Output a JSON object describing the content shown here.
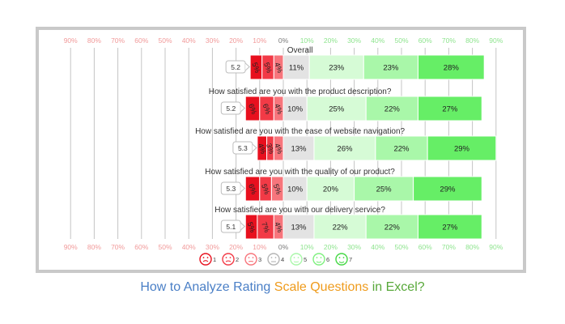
{
  "chart_data": {
    "type": "bar",
    "subtype": "diverging-stacked",
    "axis": {
      "ticks": [
        -90,
        -80,
        -70,
        -60,
        -50,
        -40,
        -30,
        -20,
        -10,
        0,
        10,
        20,
        30,
        40,
        50,
        60,
        70,
        80,
        90
      ],
      "tick_labels": [
        "90%",
        "80%",
        "70%",
        "60%",
        "50%",
        "40%",
        "30%",
        "20%",
        "10%",
        "0%",
        "10%",
        "20%",
        "30%",
        "40%",
        "50%",
        "60%",
        "70%",
        "80%",
        "90%"
      ],
      "range": [
        -90,
        90
      ],
      "grid": true
    },
    "categories": [
      "Overall",
      "How satisfied are you with the product description?",
      "How satisfied are you with the ease of website navigation?",
      "How satisfied are you with the quality of our product?",
      "How satisfied are you with our delivery service?"
    ],
    "means": [
      "5.2",
      "5.2",
      "5.3",
      "5.3",
      "5.1"
    ],
    "series": [
      {
        "key": "1",
        "values": [
          5,
          6,
          4,
          6,
          5
        ],
        "labels": [
          "5%",
          "6%",
          "4%",
          "6%",
          "5%"
        ],
        "color": "#e8101e"
      },
      {
        "key": "2",
        "values": [
          5,
          6,
          3,
          5,
          7
        ],
        "labels": [
          "5%",
          "6%",
          "3%",
          "5%",
          "7%"
        ],
        "color": "#f23a46"
      },
      {
        "key": "3",
        "values": [
          4,
          4,
          4,
          5,
          4
        ],
        "labels": [
          "4%",
          "4%",
          "4%",
          "5%",
          "4%"
        ],
        "color": "#f7757c"
      },
      {
        "key": "4",
        "values": [
          11,
          10,
          13,
          10,
          13
        ],
        "labels": [
          "11%",
          "10%",
          "13%",
          "10%",
          "13%"
        ],
        "color": "#e3e3e3"
      },
      {
        "key": "5",
        "values": [
          23,
          25,
          26,
          20,
          22
        ],
        "labels": [
          "23%",
          "25%",
          "26%",
          "20%",
          "22%"
        ],
        "color": "#d6fbd6"
      },
      {
        "key": "6",
        "values": [
          23,
          22,
          22,
          25,
          22
        ],
        "labels": [
          "23%",
          "22%",
          "22%",
          "25%",
          "22%"
        ],
        "color": "#a9f7a9"
      },
      {
        "key": "7",
        "values": [
          28,
          27,
          29,
          29,
          27
        ],
        "labels": [
          "28%",
          "27%",
          "29%",
          "29%",
          "27%"
        ],
        "color": "#66ee66"
      }
    ],
    "legend": {
      "placement": "bottom",
      "items": [
        {
          "label": "1",
          "icon": "very-dissatisfied-face-icon",
          "color": "#e8101e"
        },
        {
          "label": "2",
          "icon": "dissatisfied-face-icon",
          "color": "#f23a46"
        },
        {
          "label": "3",
          "icon": "slightly-dissatisfied-face-icon",
          "color": "#f7757c"
        },
        {
          "label": "4",
          "icon": "neutral-face-icon",
          "color": "#b5b5b5"
        },
        {
          "label": "5",
          "icon": "slightly-satisfied-face-icon",
          "color": "#a9f7a9"
        },
        {
          "label": "6",
          "icon": "satisfied-face-icon",
          "color": "#7ef07e"
        },
        {
          "label": "7",
          "icon": "very-satisfied-face-icon",
          "color": "#44d844"
        }
      ]
    },
    "colors": {
      "negative_tick": "#f19a9a",
      "zero_tick": "#7a7a7a",
      "positive_tick": "#8ee48e",
      "grid": "#c4c4c4"
    }
  },
  "caption": {
    "parts": [
      {
        "text": "How to Analyze Rating ",
        "color": "#4a7fc6"
      },
      {
        "text": "Scale Questions",
        "color": "#ef9b1c"
      },
      {
        "text": " in Excel?",
        "color": "#58a83a"
      }
    ]
  }
}
